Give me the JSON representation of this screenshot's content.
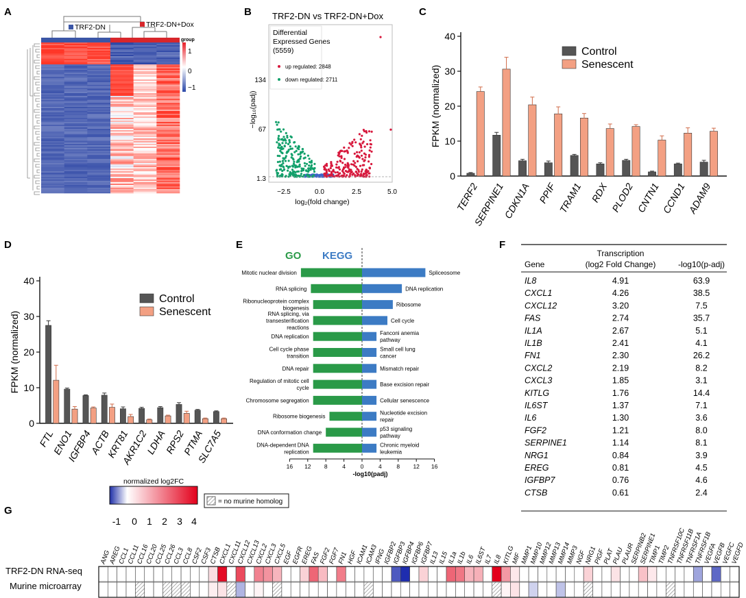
{
  "panel_labels": [
    "A",
    "B",
    "C",
    "D",
    "E",
    "F",
    "G"
  ],
  "panelA": {
    "legend_groups": [
      "TRF2-DN",
      "TRF2-DN+Dox"
    ],
    "group_colors": [
      "#3b56a6",
      "#d7262b"
    ],
    "scale_title": "group",
    "scale_ticks": [
      "1",
      "0",
      "−1"
    ]
  },
  "panelB": {
    "title": "TRF2-DN vs TRF2-DN+Dox",
    "box_title": [
      "Differential",
      "Expressed Genes",
      "(5559)"
    ],
    "up_label": "up regulated: 2848",
    "down_label": "down regulated: 2711",
    "xlabel": "log₂(fold change)",
    "ylabel": "−log₁₀(padj)",
    "xticks": [
      "−2.5",
      "0.0",
      "2.5",
      "5.0"
    ],
    "yticks": [
      "1.3",
      "67",
      "134"
    ],
    "colors": {
      "up": "#d7193d",
      "down": "#13a06b",
      "ns": "#3d63c9"
    }
  },
  "panelC": {
    "chart_data": {
      "type": "bar",
      "ylabel": "FPKM (normalized)",
      "ylim": [
        0,
        40
      ],
      "yticks": [
        "0",
        "10",
        "20",
        "30",
        "40"
      ],
      "categories": [
        "TERF2",
        "SERPINE1",
        "CDKN1A",
        "PPIF",
        "TRAM1",
        "RDX",
        "PLOD2",
        "CNTN1",
        "CCND1",
        "ADAM9"
      ],
      "series": [
        {
          "name": "Control",
          "color": "#555555",
          "values": [
            0.8,
            11.7,
            4.4,
            3.8,
            5.9,
            3.5,
            4.5,
            1.2,
            3.5,
            4.0
          ],
          "errors": [
            0.2,
            0.8,
            0.4,
            0.5,
            0.3,
            0.3,
            0.3,
            0.2,
            0.2,
            0.5
          ]
        },
        {
          "name": "Senescent",
          "color": "#f3a083",
          "values": [
            24.2,
            30.6,
            20.4,
            17.8,
            16.6,
            13.6,
            14.2,
            10.3,
            12.3,
            12.8
          ],
          "errors": [
            1.3,
            3.4,
            2.2,
            2.0,
            1.3,
            1.3,
            0.5,
            1.2,
            1.5,
            0.9
          ]
        }
      ]
    }
  },
  "panelD": {
    "chart_data": {
      "type": "bar",
      "ylabel": "FPKM (normalized)",
      "ylim": [
        0,
        40
      ],
      "yticks": [
        "0",
        "10",
        "20",
        "30",
        "40"
      ],
      "categories": [
        "FTL",
        "ENO1",
        "IGFBP4",
        "ACTB",
        "KRT81",
        "AKR1C2",
        "LDHA",
        "RPS2",
        "PTMA",
        "SLC7A5"
      ],
      "series": [
        {
          "name": "Control",
          "color": "#555555",
          "values": [
            27.5,
            9.6,
            7.8,
            7.9,
            4.1,
            4.2,
            4.4,
            5.3,
            3.7,
            3.3
          ],
          "errors": [
            1.3,
            0.3,
            0.2,
            0.6,
            0.5,
            0.3,
            0.3,
            0.5,
            0.2,
            0.2
          ]
        },
        {
          "name": "Senescent",
          "color": "#f3a083",
          "values": [
            12.1,
            4.0,
            4.3,
            4.5,
            1.9,
            1.0,
            2.1,
            2.8,
            1.3,
            1.3
          ],
          "errors": [
            4.2,
            0.7,
            0.3,
            0.9,
            0.6,
            0.2,
            0.2,
            0.6,
            0.2,
            0.2
          ]
        }
      ]
    }
  },
  "panelE": {
    "chart_data": {
      "type": "bar",
      "xlabel": "-log10(padj)",
      "xticks": [
        "16",
        "12",
        "8",
        "4",
        "0",
        "4",
        "8",
        "12",
        "16"
      ],
      "series": [
        {
          "name": "GO",
          "color": "#2a9a48",
          "terms": [
            "Mitotic nuclear division",
            "RNA splicing",
            "Ribonucleoprotein complex biogenesis",
            "RNA splicing, via transesterification reactions",
            "DNA replication",
            "Cell cycle phase transition",
            "DNA repair",
            "Regulation of mitotic cell cycle",
            "Chromosome segregation",
            "Ribosome biogenesis",
            "DNA conformation change",
            "DNA-dependent DNA replication"
          ],
          "values": [
            13.5,
            11.3,
            10.8,
            10.8,
            10.8,
            10.8,
            10.8,
            10.8,
            10.8,
            7.2,
            8.0,
            10.8
          ]
        },
        {
          "name": "KEGG",
          "color": "#3c7bc4",
          "terms": [
            "Spliceosome",
            "DNA replication",
            "Ribosome",
            "Cell cycle",
            "Fanconi anemia pathway",
            "Small cell lung cancer",
            "Mismatch repair",
            "Base excision repair",
            "Cellular senescence",
            "Nucleotide excision repair",
            "p53 signaling pathway",
            "Chronic myeloid leukemia"
          ],
          "values": [
            14.0,
            8.8,
            6.8,
            5.6,
            3.2,
            3.2,
            3.2,
            3.2,
            3.2,
            3.2,
            3.2,
            3.2
          ]
        }
      ]
    }
  },
  "panelF": {
    "headers": {
      "gene": "Gene",
      "transcription": "Transcription",
      "fold": "(log2 Fold Change)",
      "padj": "-log10(p-adj)"
    },
    "rows": [
      [
        "IL8",
        "4.91",
        "63.9"
      ],
      [
        "CXCL1",
        "4.26",
        "38.5"
      ],
      [
        "CXCL12",
        "3.20",
        "7.5"
      ],
      [
        "FAS",
        "2.74",
        "35.7"
      ],
      [
        "IL1A",
        "2.67",
        "5.1"
      ],
      [
        "IL1B",
        "2.41",
        "4.1"
      ],
      [
        "FN1",
        "2.30",
        "26.2"
      ],
      [
        "CXCL2",
        "2.19",
        "8.2"
      ],
      [
        "CXCL3",
        "1.85",
        "3.1"
      ],
      [
        "KITLG",
        "1.76",
        "14.4"
      ],
      [
        "IL6ST",
        "1.37",
        "7.1"
      ],
      [
        "IL6",
        "1.30",
        "3.6"
      ],
      [
        "FGF2",
        "1.21",
        "8.0"
      ],
      [
        "SERPINE1",
        "1.14",
        "8.1"
      ],
      [
        "NRG1",
        "0.84",
        "3.9"
      ],
      [
        "EREG",
        "0.81",
        "4.5"
      ],
      [
        "IGFBP7",
        "0.76",
        "4.6"
      ],
      [
        "CTSB",
        "0.61",
        "2.4"
      ]
    ]
  },
  "panelG": {
    "scale_title": "normalized log2FC",
    "scale_ticks": [
      "-1",
      "0",
      "1",
      "2",
      "3",
      "4"
    ],
    "hatch_label": "= no murine homolog",
    "row_labels": [
      "TRF2-DN RNA-seq",
      "Murine microarray"
    ],
    "genes": [
      "ANG",
      "AREG",
      "CCL1",
      "CCL11",
      "CCL16",
      "CCL20",
      "CCL25",
      "CCL26",
      "CCL3",
      "CCL8",
      "CSF2",
      "CSF3",
      "CTSB",
      "CXCL1",
      "CXCL11",
      "CXCL12",
      "CXCL13",
      "CXCL2",
      "CXCL3",
      "CXCL5",
      "EGF",
      "EGFR",
      "EREG",
      "FAS",
      "FGF2",
      "FGF7",
      "FN1",
      "HGF",
      "ICAM1",
      "ICAM3",
      "IFNG",
      "IGFBP2",
      "IGFBP3",
      "IGFBP4",
      "IGFBP6",
      "IGFBP7",
      "IL13",
      "IL15",
      "IL1a",
      "IL1b",
      "IL6",
      "IL6ST",
      "IL7",
      "IL8",
      "KITLG",
      "MIF",
      "MMP1",
      "MMP10",
      "MMP12",
      "MMP13",
      "MMP14",
      "MMP3",
      "NGF",
      "NRG1",
      "PIGF",
      "PLAT",
      "PLAU",
      "PLAUR",
      "SERPINB2",
      "SERPINE1",
      "TIMP1",
      "TIMP2",
      "TNFRSF10C",
      "TNFRSF11B",
      "TNFRSF1A",
      "TNFRSF1B",
      "VEGFA",
      "VEGFB",
      "VEGFC",
      "VEGFD"
    ],
    "rnaseq_values": [
      0,
      0,
      0,
      0,
      0,
      0,
      0,
      0,
      0,
      0,
      0,
      0,
      0.6,
      4.3,
      0,
      3.2,
      0,
      2.2,
      1.9,
      1.3,
      0,
      0,
      0.8,
      2.7,
      1.2,
      0,
      2.3,
      0,
      0,
      0,
      0,
      0,
      -1.1,
      -1.4,
      0,
      0.8,
      0,
      0,
      2.7,
      2.4,
      1.3,
      1.4,
      0,
      4.9,
      1.8,
      0.4,
      0,
      0,
      0,
      0,
      0,
      0,
      0,
      0.8,
      0,
      0,
      0.5,
      0,
      0,
      1.1,
      0.4,
      0,
      0,
      0,
      0,
      -0.6,
      0,
      -1.0,
      0,
      0
    ],
    "murine_values": [
      0,
      0,
      0,
      0,
      0,
      0,
      0,
      0,
      0,
      0,
      0,
      0,
      0.3,
      0.5,
      0,
      -0.5,
      0,
      0.2,
      0,
      0,
      0,
      0,
      0,
      0,
      0,
      0,
      0,
      0,
      0,
      0,
      0,
      0,
      0,
      0,
      0,
      0,
      0,
      0,
      0,
      0,
      0,
      0,
      0,
      0,
      0.2,
      0.5,
      0,
      -0.3,
      0,
      0,
      -0.4,
      0,
      0,
      0,
      0,
      0,
      0,
      0,
      0,
      0,
      0,
      0,
      0,
      0,
      0,
      0,
      0,
      0,
      0,
      0
    ],
    "murine_no_homolog": [
      "CCL16",
      "CCL26",
      "CCL3",
      "CCL8",
      "CXCL11",
      "CXCL5",
      "ICAM3",
      "IL8",
      "NRG1",
      "TNFRSF10C"
    ]
  }
}
